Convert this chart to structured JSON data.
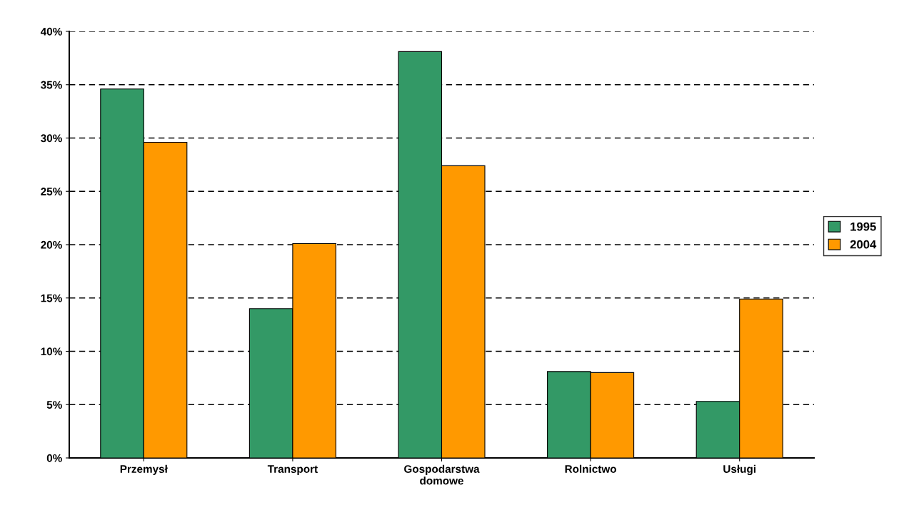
{
  "chart_data": {
    "type": "bar",
    "categories": [
      "Przemysł",
      "Transport",
      "Gospodarstwa\ndomowe",
      "Rolnictwo",
      "Usługi"
    ],
    "series": [
      {
        "name": "1995",
        "color": "#339966",
        "values": [
          34.6,
          14.0,
          38.1,
          8.1,
          5.3
        ]
      },
      {
        "name": "2004",
        "color": "#ff9900",
        "values": [
          29.6,
          20.1,
          27.4,
          8.0,
          14.9
        ]
      }
    ],
    "ylim": [
      0,
      40
    ],
    "yticks": [
      {
        "value": 0,
        "label": "0%"
      },
      {
        "value": 5,
        "label": "5%"
      },
      {
        "value": 10,
        "label": "10%"
      },
      {
        "value": 15,
        "label": "15%"
      },
      {
        "value": 20,
        "label": "20%"
      },
      {
        "value": 25,
        "label": "25%"
      },
      {
        "value": 30,
        "label": "30%"
      },
      {
        "value": 35,
        "label": "35%"
      },
      {
        "value": 40,
        "label": "40%"
      }
    ],
    "grid": "y",
    "line_style": "dashed",
    "legend": "right"
  }
}
